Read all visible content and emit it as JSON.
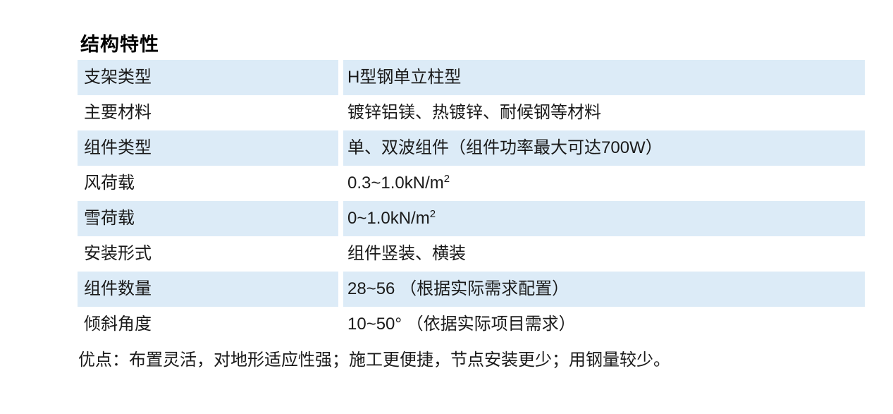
{
  "title": "结构特性",
  "table": {
    "rows": [
      {
        "label": "支架类型",
        "value": "H型钢单立柱型"
      },
      {
        "label": "主要材料",
        "value": "镀锌铝镁、热镀锌、耐候钢等材料"
      },
      {
        "label": "组件类型",
        "value": "单、双波组件（组件功率最大可达700W）"
      },
      {
        "label": "风荷载",
        "value": "0.3~1.0kN/m",
        "sup": "2"
      },
      {
        "label": "雪荷载",
        "value": "0~1.0kN/m",
        "sup": "2"
      },
      {
        "label": "安装形式",
        "value": "组件竖装、横装"
      },
      {
        "label": "组件数量",
        "value": "28~56 （根据实际需求配置）"
      },
      {
        "label": "倾斜角度",
        "value": "10~50° （依据实际项目需求）"
      }
    ]
  },
  "note": "优点：布置灵活，对地形适应性强；施工更便捷，节点安装更少；用钢量较少。",
  "colors": {
    "row_band": "#DCEBF7",
    "text": "#1A1A1A",
    "background": "#FFFFFF"
  }
}
